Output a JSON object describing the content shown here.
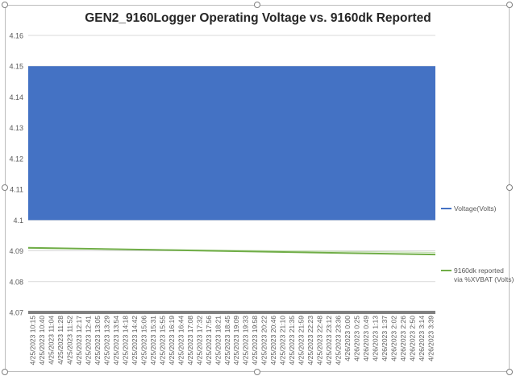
{
  "chart_data": {
    "type": "line",
    "title": "GEN2_9160Logger Operating Voltage vs. 9160dk Reported",
    "ylim": [
      4.07,
      4.16
    ],
    "yticks": [
      "4.07",
      "4.08",
      "4.09",
      "4.1",
      "4.11",
      "4.12",
      "4.13",
      "4.14",
      "4.15",
      "4.16"
    ],
    "grid": true,
    "legend_position": "right",
    "categories": [
      "4/25/2023 10:15",
      "4/25/2023 10:40",
      "4/25/2023 11:04",
      "4/25/2023 11:28",
      "4/25/2023 11:52",
      "4/25/2023 12:17",
      "4/25/2023 12:41",
      "4/25/2023 13:05",
      "4/25/2023 13:29",
      "4/25/2023 13:54",
      "4/25/2023 14:18",
      "4/25/2023 14:42",
      "4/25/2023 15:06",
      "4/25/2023 15:31",
      "4/25/2023 15:55",
      "4/25/2023 16:19",
      "4/25/2023 16:44",
      "4/25/2023 17:08",
      "4/25/2023 17:32",
      "4/25/2023 17:56",
      "4/25/2023 18:21",
      "4/25/2023 18:45",
      "4/25/2023 19:09",
      "4/25/2023 19:33",
      "4/25/2023 19:58",
      "4/25/2023 20:22",
      "4/25/2023 20:46",
      "4/25/2023 21:10",
      "4/25/2023 21:35",
      "4/25/2023 21:59",
      "4/25/2023 22:23",
      "4/25/2023 22:48",
      "4/25/2023 23:12",
      "4/25/2023 23:36",
      "4/26/2023 0:00",
      "4/26/2023 0:25",
      "4/26/2023 0:49",
      "4/26/2023 1:13",
      "4/26/2023 1:37",
      "4/26/2023 2:02",
      "4/26/2023 2:26",
      "4/26/2023 2:50",
      "4/26/2023 3:14",
      "4/26/2023 3:39"
    ],
    "series": [
      {
        "name": "Voltage(Volts)",
        "color": "#4472c4",
        "style": "oscillating-band",
        "values_low": 4.1,
        "values_high": 4.15
      },
      {
        "name": "9160dk reported via %XVBAT (Volts)",
        "legend_lines": [
          "9160dk reported",
          "via %XVBAT (Volts)"
        ],
        "color": "#70ad47",
        "start": 4.091,
        "end": 4.0888,
        "trendline": {
          "start": 4.0908,
          "end": 4.0895
        }
      }
    ],
    "baseline_color": "#808080"
  }
}
